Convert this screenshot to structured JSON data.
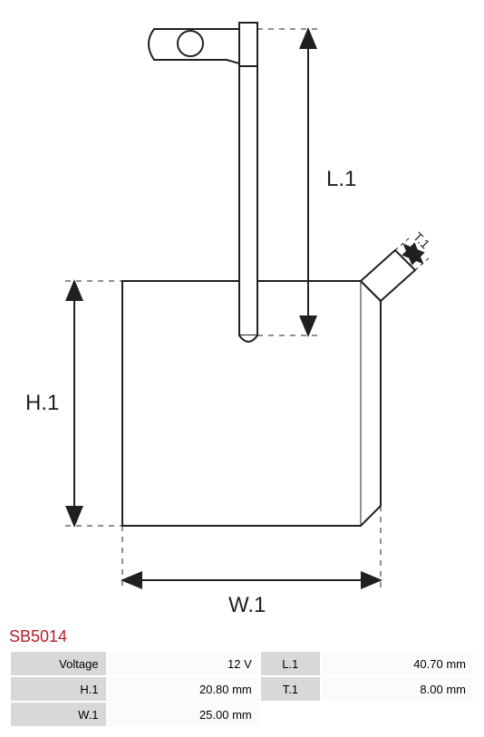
{
  "part_number": "SB5014",
  "part_number_color": "#b51f2a",
  "diagram": {
    "labels": {
      "L1": "L.1",
      "H1": "H.1",
      "W1": "W.1",
      "T1": "T.1"
    },
    "stroke_color": "#202020",
    "stroke_width_main": 2,
    "stroke_width_thin": 1,
    "dash_pattern": "6,6",
    "background": "#ffffff",
    "brush_fill": "#ffffff",
    "label_fontsize": 24
  },
  "specs": {
    "header_bg": "#d8d8d8",
    "value_bg": "#fbfbfb",
    "rows": [
      {
        "label": "Voltage",
        "value": "12 V",
        "label2": "L.1",
        "value2": "40.70 mm"
      },
      {
        "label": "H.1",
        "value": "20.80 mm",
        "label2": "T.1",
        "value2": "8.00 mm"
      },
      {
        "label": "W.1",
        "value": "25.00 mm",
        "label2": "",
        "value2": ""
      }
    ]
  }
}
